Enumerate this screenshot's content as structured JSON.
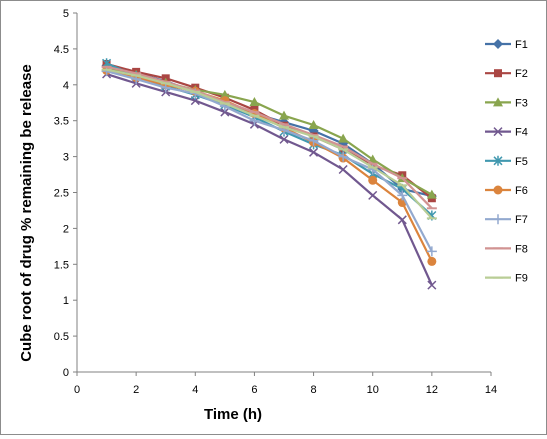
{
  "chart_data": {
    "type": "line",
    "xlabel": "Time (h)",
    "ylabel": "Cube root of drug % remaining be release",
    "xlim": [
      0,
      14
    ],
    "ylim": [
      0,
      5
    ],
    "xticks": [
      "0",
      "2",
      "4",
      "6",
      "8",
      "10",
      "12",
      "14"
    ],
    "yticks": [
      "0",
      "0.5",
      "1",
      "1.5",
      "2",
      "2.5",
      "3",
      "3.5",
      "4",
      "4.5",
      "5"
    ],
    "x": [
      1,
      2,
      3,
      4,
      5,
      6,
      7,
      8,
      9,
      10,
      11,
      12
    ],
    "grid": false,
    "legend_position": "right",
    "series": [
      {
        "name": "F1",
        "color": "#4572A7",
        "marker": "diamond",
        "values": [
          4.27,
          4.16,
          4.05,
          3.9,
          3.75,
          3.6,
          3.48,
          3.36,
          3.18,
          2.9,
          2.55,
          2.45
        ]
      },
      {
        "name": "F2",
        "color": "#AA4643",
        "marker": "square",
        "values": [
          4.29,
          4.18,
          4.09,
          3.96,
          3.82,
          3.65,
          3.43,
          3.28,
          3.1,
          2.88,
          2.74,
          2.42
        ]
      },
      {
        "name": "F3",
        "color": "#89A54E",
        "marker": "triangle",
        "values": [
          4.24,
          4.14,
          4.03,
          3.93,
          3.86,
          3.76,
          3.57,
          3.44,
          3.25,
          2.96,
          2.7,
          2.47
        ]
      },
      {
        "name": "F4",
        "color": "#71588F",
        "marker": "x",
        "values": [
          4.15,
          4.02,
          3.9,
          3.78,
          3.62,
          3.45,
          3.24,
          3.06,
          2.82,
          2.46,
          2.12,
          1.21
        ]
      },
      {
        "name": "F5",
        "color": "#4198AF",
        "marker": "star",
        "values": [
          4.3,
          4.12,
          3.98,
          3.86,
          3.72,
          3.55,
          3.35,
          3.17,
          3.02,
          2.76,
          2.55,
          2.18
        ]
      },
      {
        "name": "F6",
        "color": "#DB843D",
        "marker": "circle",
        "values": [
          4.2,
          4.1,
          4.0,
          3.91,
          3.78,
          3.6,
          3.4,
          3.2,
          2.98,
          2.67,
          2.36,
          1.54
        ]
      },
      {
        "name": "F7",
        "color": "#93A9CF",
        "marker": "plus",
        "values": [
          4.19,
          4.08,
          3.96,
          3.88,
          3.7,
          3.5,
          3.37,
          3.22,
          3.0,
          2.82,
          2.46,
          1.68
        ]
      },
      {
        "name": "F8",
        "color": "#D19392",
        "marker": "dash",
        "values": [
          4.25,
          4.16,
          4.04,
          3.92,
          3.76,
          3.62,
          3.45,
          3.3,
          3.14,
          2.9,
          2.7,
          2.28
        ]
      },
      {
        "name": "F9",
        "color": "#B9CD96",
        "marker": "dash",
        "values": [
          4.21,
          4.13,
          4.02,
          3.9,
          3.74,
          3.57,
          3.41,
          3.28,
          3.1,
          2.85,
          2.6,
          2.14
        ]
      }
    ]
  }
}
